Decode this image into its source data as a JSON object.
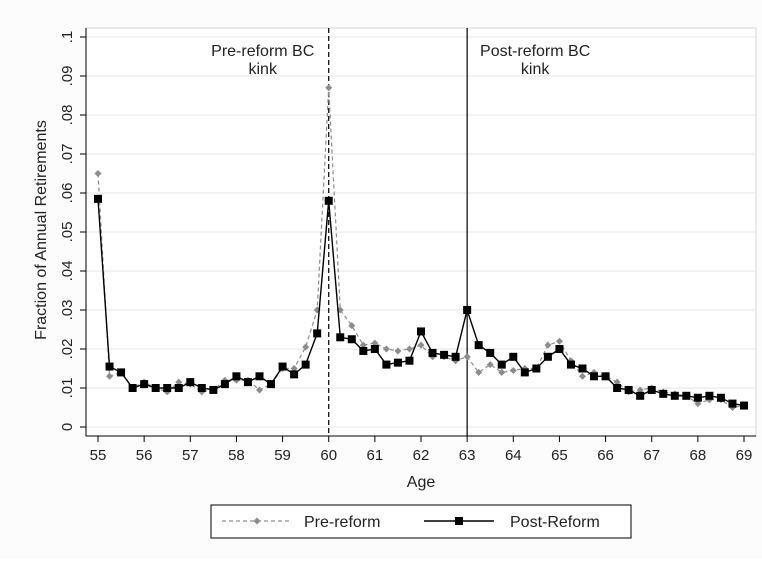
{
  "chart_data": {
    "type": "line",
    "title": "",
    "xlabel": "Age",
    "ylabel": "Fraction of Annual Retirements",
    "xlim": [
      55,
      69
    ],
    "ylim": [
      0,
      0.1
    ],
    "x_ticks": [
      "55",
      "56",
      "57",
      "58",
      "59",
      "60",
      "61",
      "62",
      "63",
      "64",
      "65",
      "66",
      "67",
      "68",
      "69"
    ],
    "y_ticks": [
      "0",
      ".01",
      ".02",
      ".03",
      ".04",
      ".05",
      ".06",
      ".07",
      ".08",
      ".09",
      ".1"
    ],
    "grid": true,
    "legend_position": "bottom",
    "annotations": [
      {
        "x": 60,
        "style": "dashed",
        "line1": "Pre-reform BC",
        "line2": "kink"
      },
      {
        "x": 63,
        "style": "solid",
        "line1": "Post-reform BC",
        "line2": "kink"
      }
    ],
    "x": [
      55,
      55.25,
      55.5,
      55.75,
      56,
      56.25,
      56.5,
      56.75,
      57,
      57.25,
      57.5,
      57.75,
      58,
      58.25,
      58.5,
      58.75,
      59,
      59.25,
      59.5,
      59.75,
      60,
      60.25,
      60.5,
      60.75,
      61,
      61.25,
      61.5,
      61.75,
      62,
      62.25,
      62.5,
      62.75,
      63,
      63.25,
      63.5,
      63.75,
      64,
      64.25,
      64.5,
      64.75,
      65,
      65.25,
      65.5,
      65.75,
      66,
      66.25,
      66.5,
      66.75,
      67,
      67.25,
      67.5,
      67.75,
      68,
      68.25,
      68.5,
      68.75,
      69
    ],
    "series": [
      {
        "name": "Pre-reform",
        "color": "#8c8c8c",
        "style": "dashed",
        "marker": "diamond",
        "values": [
          0.065,
          0.013,
          0.014,
          0.01,
          0.0115,
          0.01,
          0.009,
          0.0115,
          0.011,
          0.009,
          0.0095,
          0.012,
          0.012,
          0.012,
          0.0095,
          0.011,
          0.015,
          0.015,
          0.0205,
          0.03,
          0.087,
          0.03,
          0.026,
          0.021,
          0.0215,
          0.02,
          0.0195,
          0.02,
          0.021,
          0.018,
          0.018,
          0.017,
          0.018,
          0.014,
          0.016,
          0.014,
          0.0145,
          0.015,
          0.015,
          0.021,
          0.022,
          0.017,
          0.013,
          0.014,
          0.013,
          0.0115,
          0.009,
          0.0095,
          0.01,
          0.009,
          0.0085,
          0.008,
          0.006,
          0.007,
          0.007,
          0.005,
          0.0055
        ]
      },
      {
        "name": "Post-Reform",
        "color": "#000000",
        "style": "solid",
        "marker": "square",
        "values": [
          0.0585,
          0.0155,
          0.014,
          0.01,
          0.011,
          0.01,
          0.01,
          0.01,
          0.0115,
          0.01,
          0.0095,
          0.011,
          0.013,
          0.0115,
          0.013,
          0.011,
          0.0155,
          0.0135,
          0.016,
          0.024,
          0.058,
          0.023,
          0.0225,
          0.0195,
          0.02,
          0.016,
          0.0165,
          0.017,
          0.0245,
          0.019,
          0.0185,
          0.018,
          0.03,
          0.021,
          0.019,
          0.016,
          0.018,
          0.014,
          0.015,
          0.018,
          0.02,
          0.016,
          0.015,
          0.013,
          0.013,
          0.01,
          0.0095,
          0.008,
          0.0095,
          0.0085,
          0.008,
          0.008,
          0.0075,
          0.008,
          0.0075,
          0.006,
          0.0055
        ]
      }
    ]
  }
}
